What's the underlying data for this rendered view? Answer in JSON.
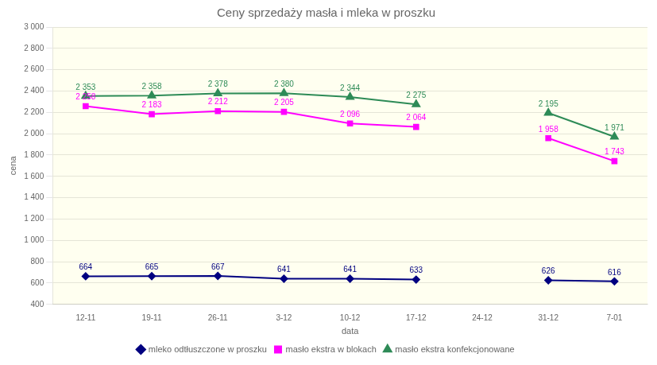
{
  "chart_data": {
    "type": "line",
    "title": "Ceny sprzedaży masła i mleka w proszku",
    "ylabel": "cena",
    "xlabel": "data",
    "categories": [
      "12-11",
      "19-11",
      "26-11",
      "3-12",
      "10-12",
      "17-12",
      "24-12",
      "31-12",
      "7-01"
    ],
    "series": [
      {
        "name": "mleko odtłuszczone w proszku",
        "color": "#000080",
        "marker": "diamond",
        "values": [
          664,
          665,
          667,
          641,
          641,
          633,
          null,
          626,
          616
        ]
      },
      {
        "name": "masło ekstra w blokach",
        "color": "#FF00FF",
        "marker": "square",
        "values": [
          2258,
          2183,
          2212,
          2205,
          2096,
          2064,
          null,
          1958,
          1743
        ],
        "value_labels": [
          "2 258",
          "2 183",
          "2 212",
          "2 205",
          "2 096",
          "2 064",
          null,
          "1 958",
          "1 743"
        ]
      },
      {
        "name": "masło ekstra konfekcjonowane",
        "color": "#2E8B57",
        "marker": "triangle",
        "values": [
          2353,
          2358,
          2378,
          2380,
          2344,
          2275,
          null,
          2195,
          1971
        ],
        "value_labels": [
          "2 353",
          "2 358",
          "2 378",
          "2 380",
          "2 344",
          "2 275",
          null,
          "2 195",
          "1 971"
        ]
      }
    ],
    "ylim": [
      400,
      3000
    ],
    "yticks": [
      400,
      600,
      800,
      {
        "value": 1000,
        "label": "1 000"
      },
      {
        "value": 1200,
        "label": "1 200"
      },
      {
        "value": 1400,
        "label": "1 400"
      },
      {
        "value": 1600,
        "label": "1 600"
      },
      {
        "value": 1800,
        "label": "1 800"
      },
      {
        "value": 2000,
        "label": "2 000"
      },
      {
        "value": 2200,
        "label": "2 200"
      },
      {
        "value": 2400,
        "label": "2 400"
      },
      {
        "value": 2600,
        "label": "2 600"
      },
      {
        "value": 2800,
        "label": "2 800"
      },
      {
        "value": 3000,
        "label": "3 000"
      }
    ],
    "grid": true,
    "legend": "bottom",
    "data_labels": true
  }
}
